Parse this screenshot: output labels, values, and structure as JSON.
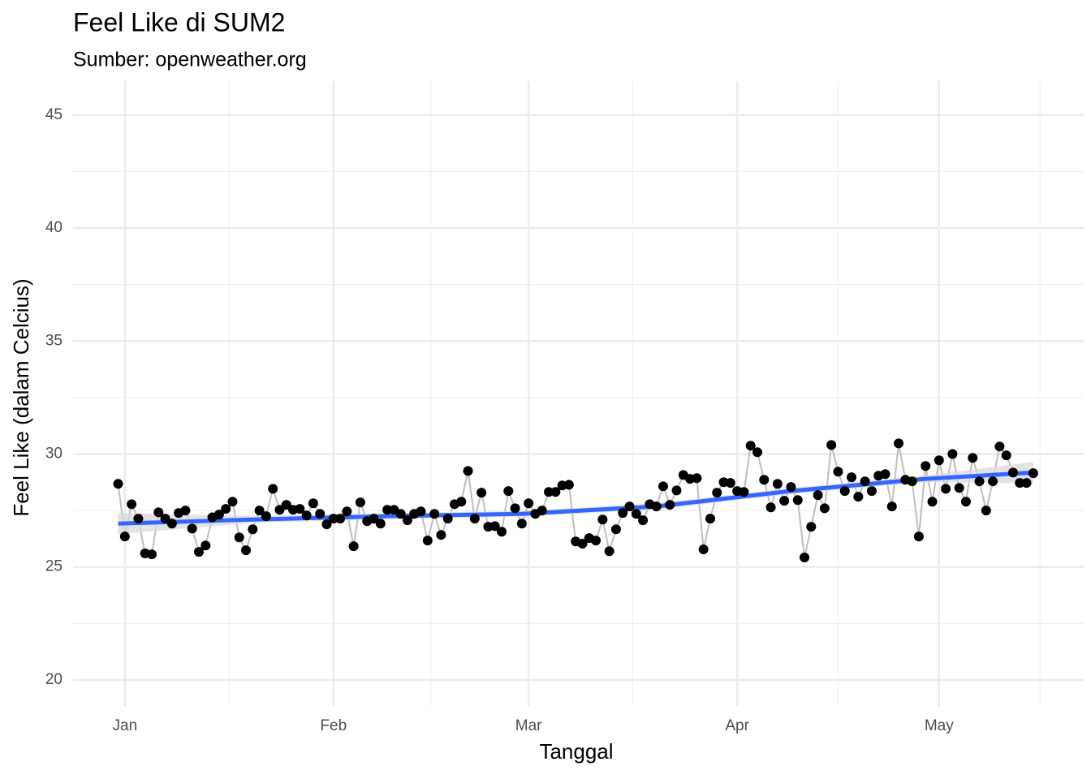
{
  "chart_data": {
    "type": "line",
    "title": "Feel Like di SUM2",
    "subtitle": "Sumber: openweather.org",
    "x_label": "Tanggal",
    "y_label": "Feel Like (dalam Celcius)",
    "x": [
      0,
      1,
      2,
      3,
      4,
      5,
      6,
      7,
      8,
      9,
      10,
      11,
      12,
      13,
      14,
      15,
      16,
      17,
      18,
      19,
      20,
      21,
      22,
      23,
      24,
      25,
      26,
      27,
      28,
      29,
      30,
      31,
      32,
      33,
      34,
      35,
      36,
      37,
      38,
      39,
      40,
      41,
      42,
      43,
      44,
      45,
      46,
      47,
      48,
      49,
      50,
      51,
      52,
      53,
      54,
      55,
      56,
      57,
      58,
      59,
      60,
      61,
      62,
      63,
      64,
      65,
      66,
      67,
      68,
      69,
      70,
      71,
      72,
      73,
      74,
      75,
      76,
      77,
      78,
      79,
      80,
      81,
      82,
      83,
      84,
      85,
      86,
      87,
      88,
      89,
      90,
      91,
      92,
      93,
      94,
      95,
      96,
      97,
      98,
      99,
      100,
      101,
      102,
      103,
      104,
      105,
      106,
      107,
      108,
      109,
      110,
      111,
      112,
      113,
      114,
      115,
      116,
      117,
      118,
      119,
      120,
      121,
      122,
      123,
      124,
      125,
      126,
      127,
      128,
      129,
      130,
      131,
      132,
      133,
      134,
      135,
      136
    ],
    "series": [
      {
        "color": "#000000",
        "line_color": "#bebebe",
        "values": [
          28.68,
          26.35,
          27.78,
          27.14,
          25.6,
          25.56,
          27.42,
          27.14,
          26.92,
          27.39,
          27.5,
          26.7,
          25.67,
          25.95,
          27.2,
          27.32,
          27.57,
          27.89,
          26.31,
          25.74,
          26.67,
          27.5,
          27.25,
          28.46,
          27.53,
          27.75,
          27.53,
          27.57,
          27.28,
          27.82,
          27.35,
          26.89,
          27.14,
          27.14,
          27.46,
          25.92,
          27.86,
          27.03,
          27.14,
          26.92,
          27.53,
          27.53,
          27.35,
          27.07,
          27.35,
          27.46,
          26.17,
          27.35,
          26.42,
          27.14,
          27.78,
          27.89,
          29.25,
          27.14,
          28.29,
          26.78,
          26.81,
          26.56,
          28.36,
          27.6,
          26.92,
          27.82,
          27.35,
          27.5,
          28.32,
          28.32,
          28.61,
          28.64,
          26.13,
          26.03,
          26.28,
          26.17,
          27.1,
          25.7,
          26.67,
          27.39,
          27.68,
          27.35,
          27.07,
          27.78,
          27.68,
          28.57,
          27.75,
          28.39,
          29.07,
          28.9,
          28.93,
          25.78,
          27.14,
          28.29,
          28.75,
          28.72,
          28.36,
          28.32,
          30.37,
          30.08,
          28.86,
          27.64,
          28.68,
          27.93,
          28.54,
          27.96,
          25.42,
          26.78,
          28.18,
          27.6,
          30.4,
          29.22,
          28.36,
          28.97,
          28.11,
          28.79,
          28.36,
          29.04,
          29.11,
          27.68,
          30.47,
          28.86,
          28.79,
          26.35,
          29.47,
          27.89,
          29.72,
          28.46,
          30.0,
          28.5,
          27.89,
          29.83,
          28.79,
          27.5,
          28.79,
          30.33,
          29.94,
          29.18,
          28.72,
          28.72,
          29.15
        ]
      }
    ],
    "smooth": {
      "color": "#3366ff",
      "band_color": "#d9d9d9",
      "x": [
        0,
        20,
        40,
        60,
        80,
        100,
        120,
        136
      ],
      "values": [
        26.92,
        27.1,
        27.25,
        27.35,
        27.68,
        28.36,
        28.9,
        29.18
      ],
      "lower": [
        26.46,
        26.95,
        27.12,
        27.22,
        27.55,
        28.22,
        28.75,
        28.7
      ],
      "upper": [
        27.39,
        27.25,
        27.38,
        27.48,
        27.82,
        28.5,
        29.05,
        29.65
      ]
    },
    "xlim": [
      -6.7,
      143.5
    ],
    "xticks": [
      {
        "value": 1,
        "label": "Jan"
      },
      {
        "value": 32,
        "label": "Feb"
      },
      {
        "value": 61,
        "label": "Mar"
      },
      {
        "value": 92,
        "label": "Apr"
      },
      {
        "value": 122,
        "label": "May"
      }
    ],
    "ylim": [
      18.85,
      46.5
    ],
    "yticks": [
      20,
      25,
      30,
      35,
      40,
      45
    ],
    "grid": true
  }
}
